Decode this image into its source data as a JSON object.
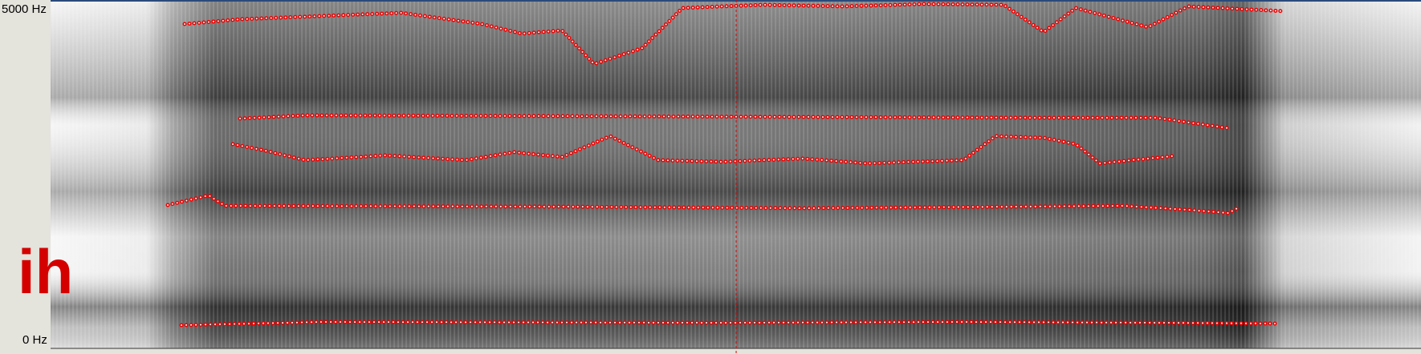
{
  "axis": {
    "top_label": "5000 Hz",
    "bottom_label": "0 Hz"
  },
  "overlay_label": "ih"
}
